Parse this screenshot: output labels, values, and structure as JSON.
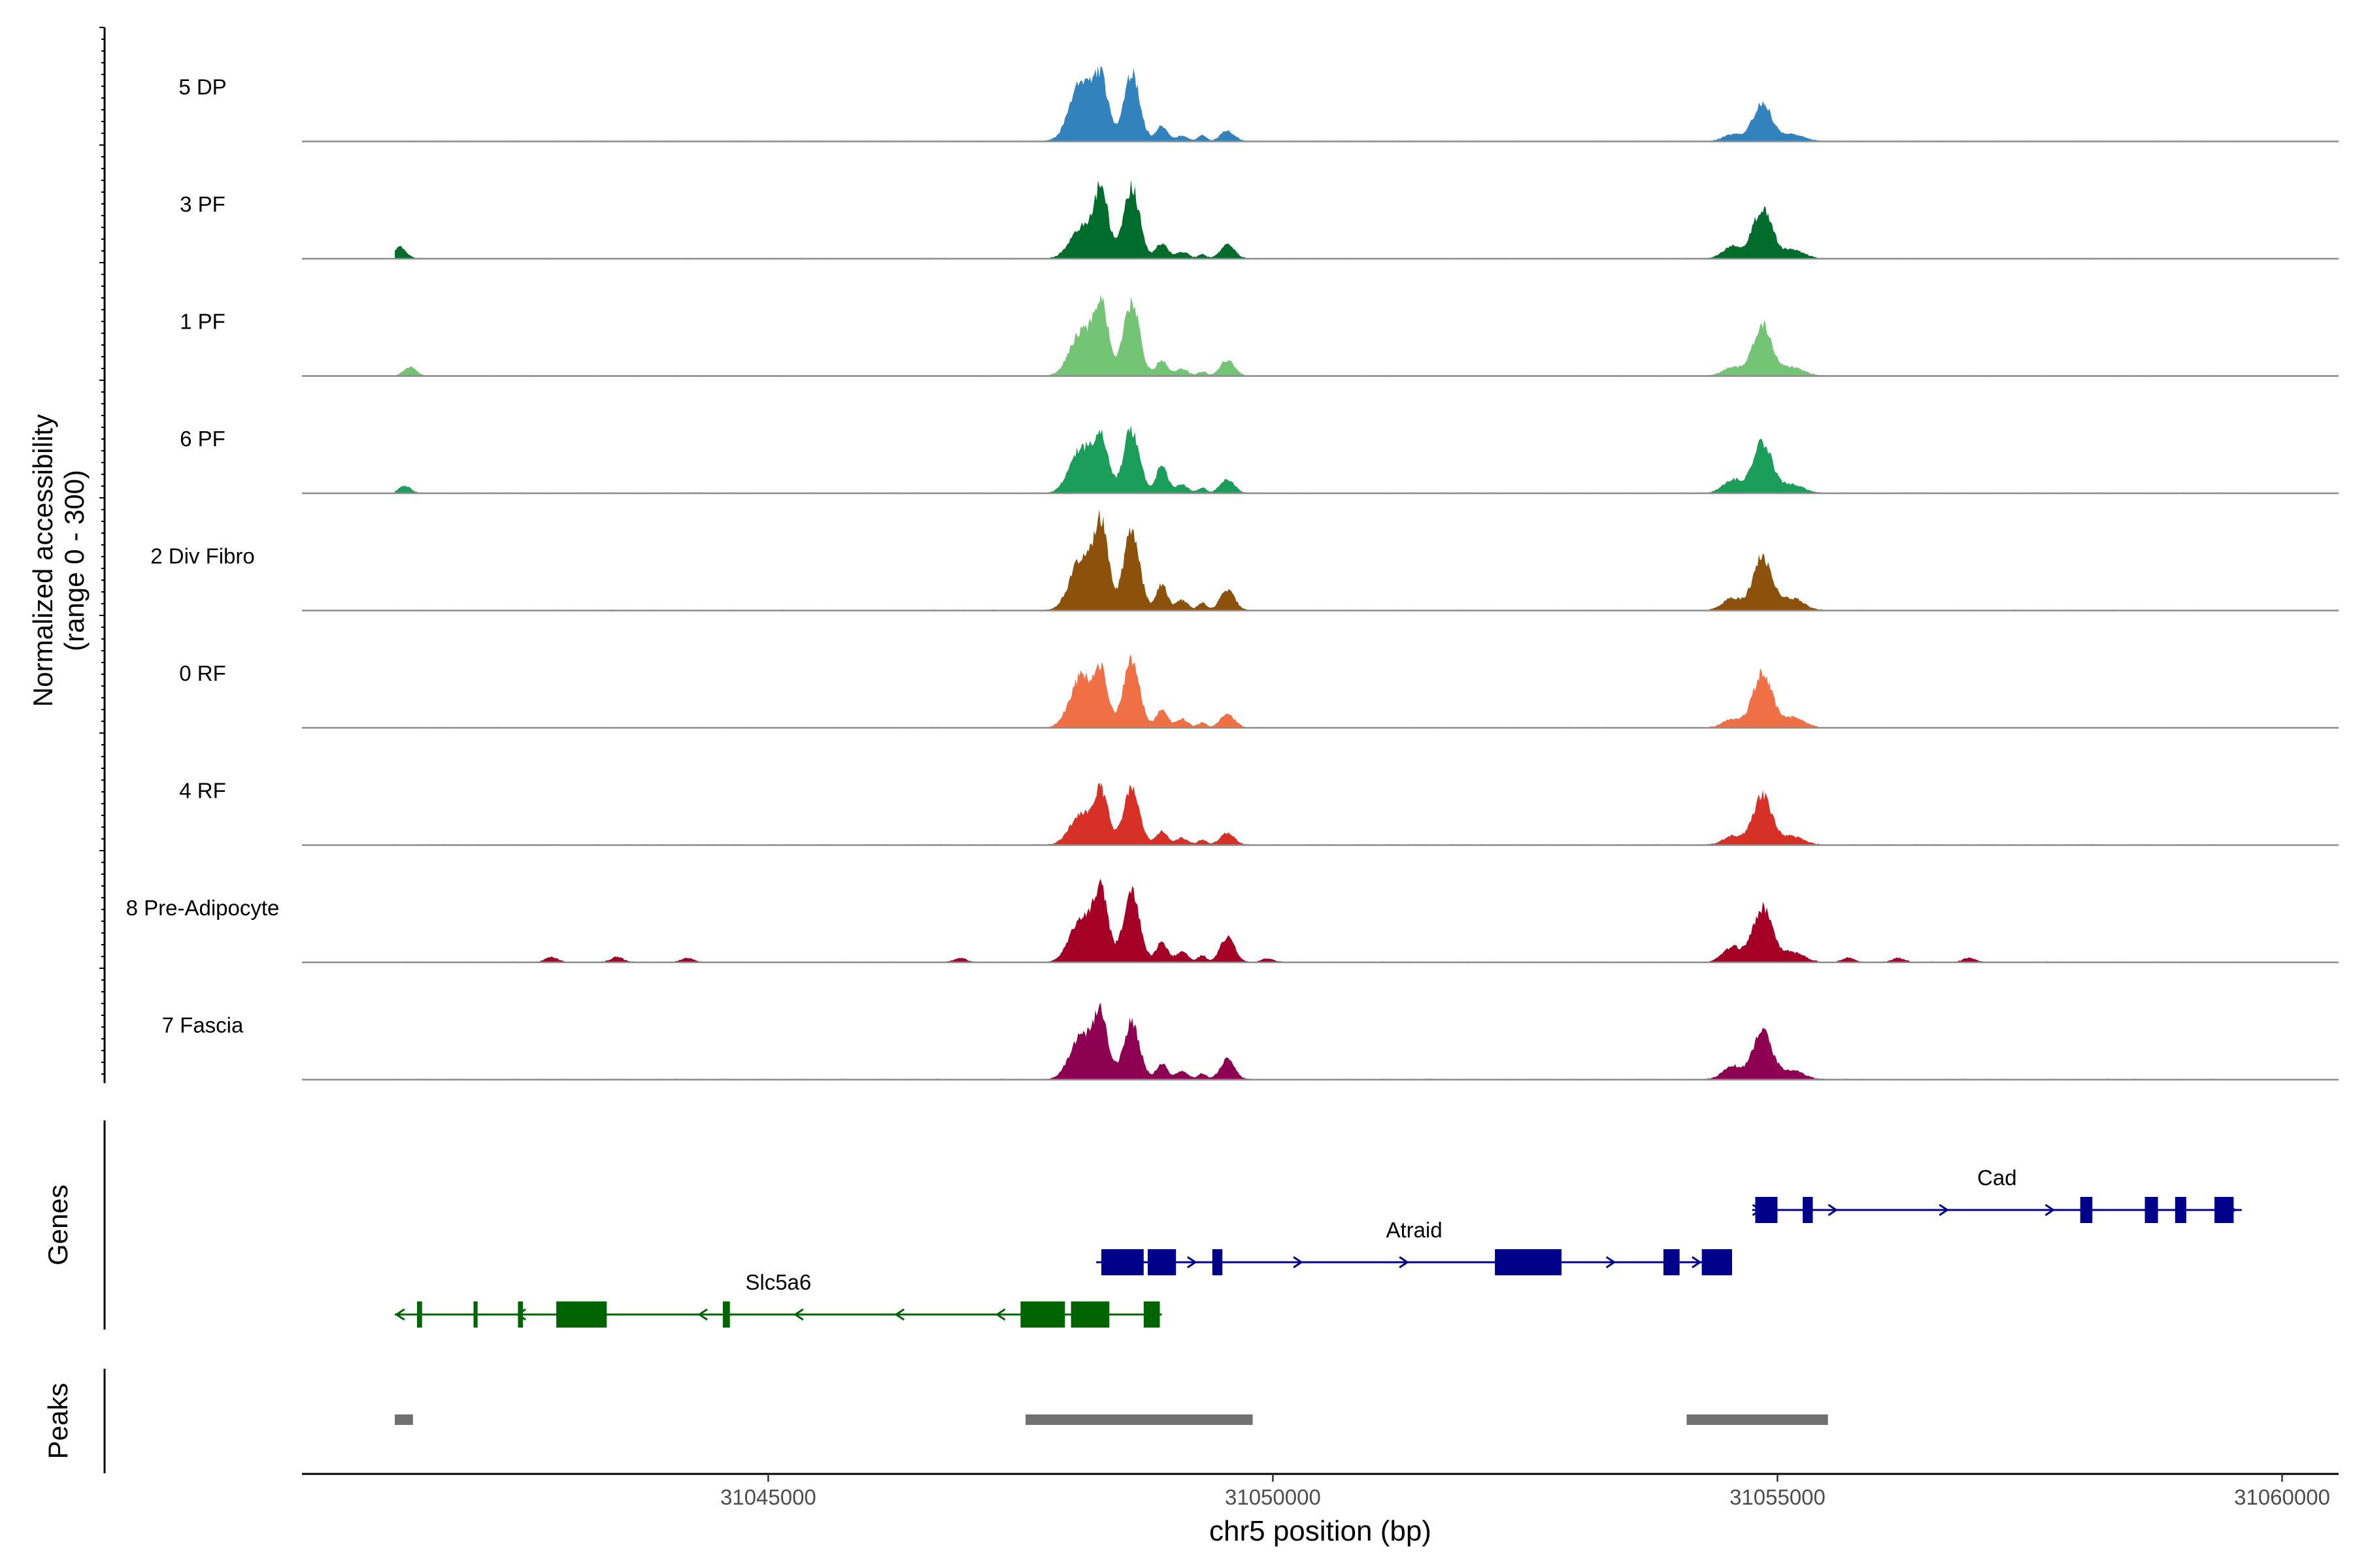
{
  "chart_data": {
    "type": "area",
    "title": "",
    "xlabel": "chr5 position (bp)",
    "ylabel_line1": "Normalized accessibility",
    "ylabel_line2": "(range 0 - 300)",
    "y_range": [
      0,
      300
    ],
    "xlim": [
      31040380,
      31060560
    ],
    "x_ticks": [
      31045000,
      31050000,
      31055000,
      31060000
    ],
    "x_tick_labels": [
      "31045000",
      "31050000",
      "31055000",
      "31060000"
    ],
    "track_start": 31041300,
    "track_end": 31059600,
    "main_peaks": [
      {
        "pos": 31048100,
        "sd": 110
      },
      {
        "pos": 31048300,
        "sd": 70
      },
      {
        "pos": 31048600,
        "sd": 80
      },
      {
        "pos": 31048900,
        "sd": 55
      },
      {
        "pos": 31049100,
        "sd": 60
      },
      {
        "pos": 31049300,
        "sd": 40
      },
      {
        "pos": 31049550,
        "sd": 70
      },
      {
        "pos": 31054550,
        "sd": 90
      },
      {
        "pos": 31054850,
        "sd": 95
      },
      {
        "pos": 31055150,
        "sd": 110
      }
    ],
    "series": [
      {
        "name": "5 DP",
        "color": "#3182BD",
        "heights": [
          180,
          170,
          200,
          45,
          15,
          18,
          30,
          20,
          110,
          20
        ],
        "baseline_peaks": []
      },
      {
        "name": "3 PF",
        "color": "#006D2C",
        "heights": [
          90,
          200,
          210,
          45,
          20,
          12,
          40,
          35,
          150,
          25
        ],
        "baseline_peaks": [
          [
            31041350,
            35
          ]
        ]
      },
      {
        "name": "1 PF",
        "color": "#74C476",
        "heights": [
          130,
          210,
          215,
          45,
          20,
          12,
          45,
          25,
          150,
          25
        ],
        "baseline_peaks": [
          [
            31041450,
            25
          ]
        ]
      },
      {
        "name": "6 PF",
        "color": "#1B9E5A",
        "heights": [
          135,
          155,
          190,
          85,
          25,
          15,
          40,
          40,
          150,
          25
        ],
        "baseline_peaks": [
          [
            31041400,
            20
          ]
        ]
      },
      {
        "name": "2 Div Fibro",
        "color": "#8C510A",
        "heights": [
          150,
          240,
          230,
          75,
          30,
          22,
          60,
          35,
          155,
          35
        ],
        "baseline_peaks": []
      },
      {
        "name": "0 RF",
        "color": "#F07046",
        "heights": [
          150,
          150,
          195,
          55,
          25,
          15,
          40,
          25,
          160,
          30
        ],
        "baseline_peaks": []
      },
      {
        "name": "4 RF",
        "color": "#D73027",
        "heights": [
          90,
          150,
          165,
          40,
          20,
          15,
          35,
          25,
          145,
          25
        ],
        "baseline_peaks": []
      },
      {
        "name": "8 Pre-Adipocyte",
        "color": "#A50026",
        "heights": [
          130,
          200,
          210,
          60,
          30,
          20,
          75,
          45,
          160,
          30
        ],
        "baseline_peaks": [
          [
            31042850,
            15
          ],
          [
            31043500,
            15
          ],
          [
            31044200,
            12
          ],
          [
            31046900,
            12
          ],
          [
            31049950,
            10
          ],
          [
            31055700,
            12
          ],
          [
            31056200,
            12
          ],
          [
            31056900,
            12
          ]
        ]
      },
      {
        "name": "7 Fascia",
        "color": "#8E0152",
        "heights": [
          130,
          180,
          170,
          45,
          25,
          18,
          60,
          40,
          140,
          25
        ],
        "baseline_peaks": []
      }
    ],
    "gene_panel_label": "Genes",
    "genes": [
      {
        "name": "Cad",
        "strand": "+",
        "start": 31054750,
        "end": 31059600,
        "color": "#00008B",
        "exons": [
          [
            31054780,
            31055000
          ],
          [
            31055250,
            31055350
          ],
          [
            31058000,
            31058120
          ],
          [
            31058640,
            31058770
          ],
          [
            31058940,
            31059050
          ],
          [
            31059330,
            31059520
          ]
        ],
        "arrows": [
          31054800,
          31055550,
          31056650,
          31057700,
          31059500
        ]
      },
      {
        "name": "Atraid",
        "strand": "+",
        "start": 31048250,
        "end": 31054550,
        "color": "#00008B",
        "exons": [
          [
            31048300,
            31048720
          ],
          [
            31048760,
            31049040
          ],
          [
            31049400,
            31049500
          ],
          [
            31052200,
            31052860
          ],
          [
            31053870,
            31054030
          ],
          [
            31054250,
            31054550
          ]
        ],
        "arrows": [
          31049200,
          31050250,
          31051300,
          31053350,
          31054200
        ]
      },
      {
        "name": "Slc5a6",
        "strand": "-",
        "start": 31041300,
        "end": 31048900,
        "color": "#006400",
        "exons": [
          [
            31041520,
            31041570
          ],
          [
            31042080,
            31042120
          ],
          [
            31042520,
            31042570
          ],
          [
            31042900,
            31043400
          ],
          [
            31044550,
            31044620
          ],
          [
            31047500,
            31047940
          ],
          [
            31048000,
            31048380
          ],
          [
            31048720,
            31048880
          ]
        ],
        "arrows": [
          31041350,
          31042550,
          31044350,
          31045300,
          31046300,
          31047300
        ]
      }
    ],
    "peaks_panel_label": "Peaks",
    "peaks_color": "#707070",
    "peak_regions": [
      [
        31041300,
        31041480
      ],
      [
        31047550,
        31049800
      ],
      [
        31054100,
        31055500
      ]
    ]
  }
}
